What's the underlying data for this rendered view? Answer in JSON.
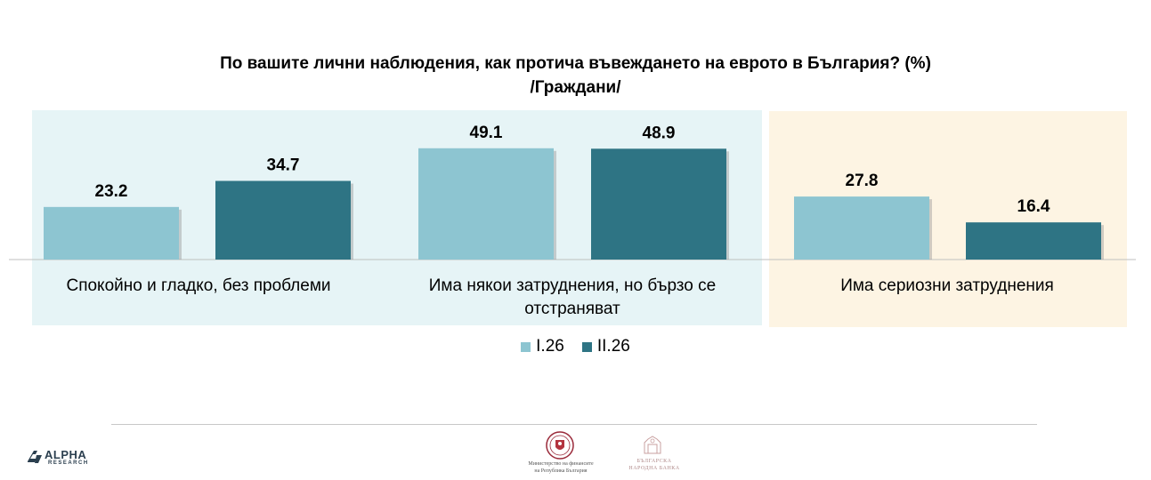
{
  "chart_data": {
    "type": "bar",
    "title": "По вашите лични наблюдения, как протича въвеждането на еврото в България? (%)",
    "subtitle": "/Граждани/",
    "categories": [
      "Спокойно и гладко, без проблеми",
      "Има някои затруднения, но бързо се отстраняват",
      "Има сериозни затруднения"
    ],
    "category_lines": [
      [
        "Спокойно и гладко, без проблеми"
      ],
      [
        "Има някои затруднения, но бързо се",
        "отстраняват"
      ],
      [
        "Има сериозни затруднения"
      ]
    ],
    "series": [
      {
        "name": "I.26",
        "values": [
          23.2,
          49.1,
          27.8
        ],
        "color": "#8dc5d1"
      },
      {
        "name": "II.26",
        "values": [
          34.7,
          48.9,
          16.4
        ],
        "color": "#2e7484"
      }
    ],
    "value_labels": [
      [
        "23.2",
        "49.1",
        "27.8"
      ],
      [
        "34.7",
        "48.9",
        "16.4"
      ]
    ],
    "ylim": [
      0,
      60
    ],
    "legend_position": "bottom",
    "grid": false,
    "panel_colors": {
      "positive": "#e6f4f6",
      "negative": "#fdf4e3"
    }
  },
  "footer": {
    "alpha_logo": {
      "word": "ALPHA",
      "sub": "RESEARCH",
      "icon": "alpha-research-logo-icon"
    },
    "minfin_logo": {
      "line1": "Министерство на финансите",
      "line2": "на Република България",
      "icon": "minfin-seal-icon"
    },
    "bnb_logo": {
      "line1": "БЪЛГАРСКА",
      "line2": "НАРОДНА БАНКА",
      "icon": "bnb-seal-icon"
    },
    "line_color": "#c8c8c8"
  }
}
